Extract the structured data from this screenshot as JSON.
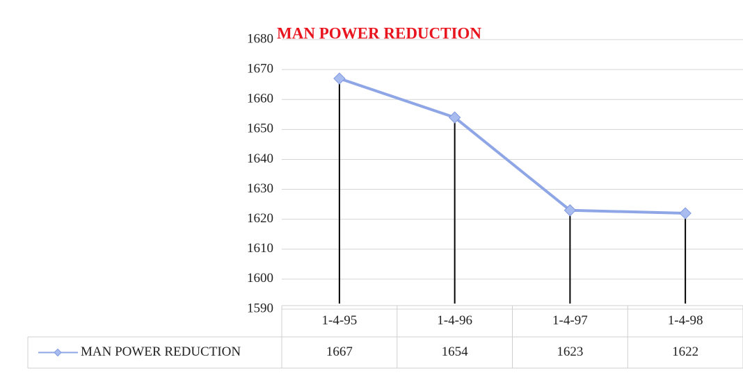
{
  "chart_data": {
    "type": "line",
    "title": "MAN POWER REDUCTION",
    "title_color": "#e8141e",
    "categories": [
      "1-4-95",
      "1-4-96",
      "1-4-97",
      "1-4-98"
    ],
    "series": [
      {
        "name": "MAN POWER REDUCTION",
        "color": "#8fa6e6",
        "values": [
          1667,
          1654,
          1623,
          1622
        ]
      }
    ],
    "ylim": [
      1590,
      1680
    ],
    "yticks": [
      1590,
      1600,
      1610,
      1620,
      1630,
      1640,
      1650,
      1660,
      1670,
      1680
    ],
    "grid": true,
    "drop_lines": true,
    "data_table": true
  }
}
